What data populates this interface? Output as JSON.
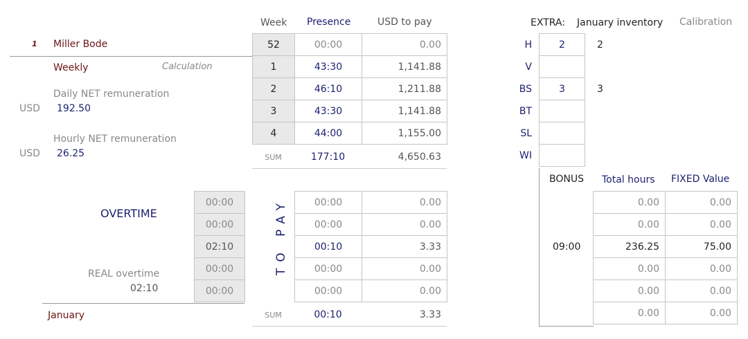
{
  "employee": {
    "index": "1",
    "name": "Miller Bode",
    "period_type": "Weekly",
    "calc_label": "Calculation",
    "daily_label": "Daily NET remuneration",
    "daily_currency": "USD",
    "daily_value": "192.50",
    "hourly_label": "Hourly NET remuneration",
    "hourly_currency": "USD",
    "hourly_value": "26.25",
    "month": "January"
  },
  "weeks_table": {
    "headers": {
      "week": "Week",
      "presence": "Presence",
      "usd": "USD to pay"
    },
    "rows": [
      {
        "week": "52",
        "presence": "00:00",
        "usd": "0.00"
      },
      {
        "week": "1",
        "presence": "43:30",
        "usd": "1,141.88"
      },
      {
        "week": "2",
        "presence": "46:10",
        "usd": "1,211.88"
      },
      {
        "week": "3",
        "presence": "43:30",
        "usd": "1,141.88"
      },
      {
        "week": "4",
        "presence": "44:00",
        "usd": "1,155.00"
      }
    ],
    "sum": {
      "label": "SUM",
      "presence": "177:10",
      "usd": "4,650.63"
    }
  },
  "overtime": {
    "title": "OVERTIME",
    "real_label": "REAL overtime",
    "real_value": "02:10",
    "values": [
      "00:00",
      "00:00",
      "02:10",
      "00:00",
      "00:00"
    ]
  },
  "to_pay": {
    "label": "TO PAY",
    "rows": [
      {
        "time": "00:00",
        "usd": "0.00"
      },
      {
        "time": "00:00",
        "usd": "0.00"
      },
      {
        "time": "00:10",
        "usd": "3.33"
      },
      {
        "time": "00:00",
        "usd": "0.00"
      },
      {
        "time": "00:00",
        "usd": "0.00"
      }
    ],
    "sum": {
      "label": "SUM",
      "time": "00:10",
      "usd": "3.33"
    }
  },
  "extra": {
    "label": "EXTRA:",
    "inventory_label": "January inventory",
    "calibration_label": "Calibration",
    "rows": [
      {
        "code": "H",
        "value": "2",
        "calib": "2"
      },
      {
        "code": "V",
        "value": "",
        "calib": ""
      },
      {
        "code": "BS",
        "value": "3",
        "calib": "3"
      },
      {
        "code": "BT",
        "value": "",
        "calib": ""
      },
      {
        "code": "SL",
        "value": "",
        "calib": ""
      },
      {
        "code": "WI",
        "value": "",
        "calib": ""
      }
    ]
  },
  "bonus": {
    "label": "BONUS",
    "time": "09:00",
    "total_label": "Total hours",
    "fixed_label": "FIXED Value",
    "rows": [
      {
        "total": "0.00",
        "fixed": "0.00"
      },
      {
        "total": "0.00",
        "fixed": "0.00"
      },
      {
        "total": "236.25",
        "fixed": "75.00"
      },
      {
        "total": "0.00",
        "fixed": "0.00"
      },
      {
        "total": "0.00",
        "fixed": "0.00"
      },
      {
        "total": "0.00",
        "fixed": "0.00"
      }
    ]
  }
}
